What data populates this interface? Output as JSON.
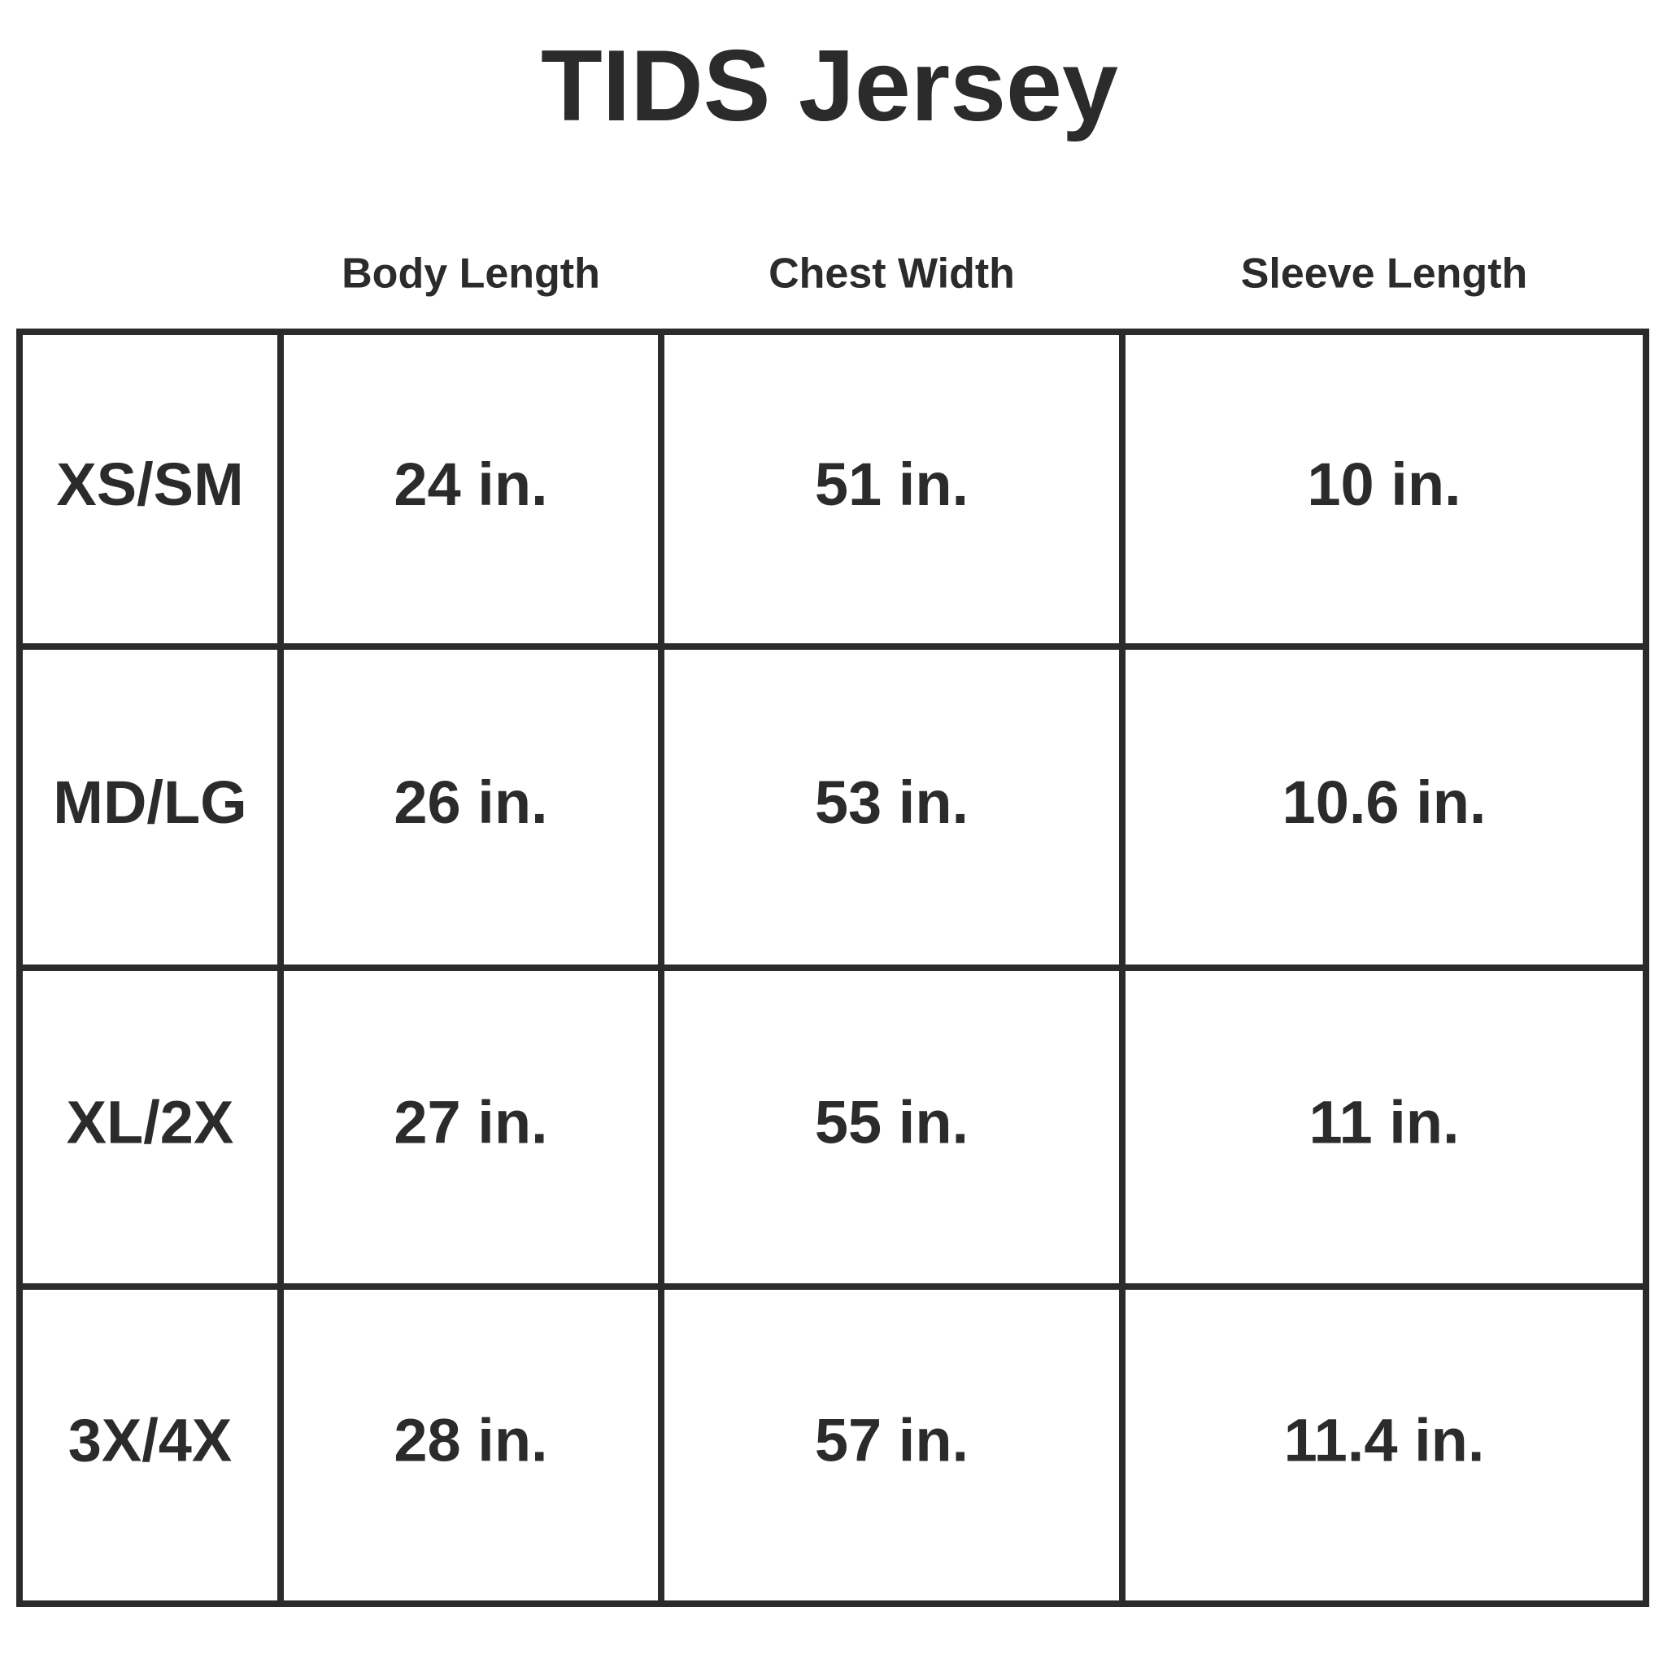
{
  "title": "TIDS Jersey",
  "table": {
    "header": [
      "Body Length",
      "Chest Width",
      "Sleeve Length"
    ],
    "rows": [
      [
        "XS/SM",
        "24 in.",
        "51 in.",
        "10 in."
      ],
      [
        "MD/LG",
        "26 in.",
        "53 in.",
        "10.6 in."
      ],
      [
        "XL/2X",
        "27 in.",
        "55 in.",
        "11 in."
      ],
      [
        "3X/4X",
        "28 in.",
        "57 in.",
        "11.4 in."
      ]
    ]
  }
}
